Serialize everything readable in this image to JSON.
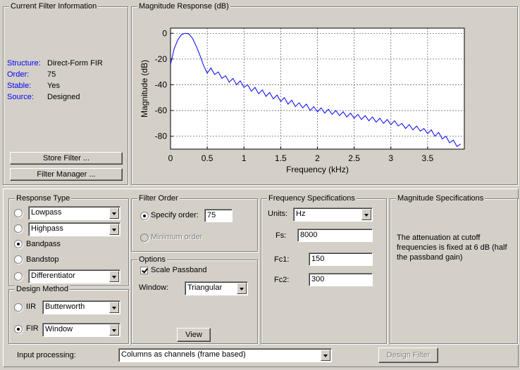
{
  "filter_info": {
    "title": "Current Filter Information",
    "fields": [
      {
        "label": "Structure:",
        "value": "Direct-Form FIR"
      },
      {
        "label": "Order:",
        "value": "75"
      },
      {
        "label": "Stable:",
        "value": "Yes"
      },
      {
        "label": "Source:",
        "value": "Designed"
      }
    ],
    "buttons": [
      "Store Filter ...",
      "Filter Manager ..."
    ]
  },
  "chart_data": {
    "type": "line",
    "title": "Magnitude Response (dB)",
    "xlabel": "Frequency (kHz)",
    "ylabel": "Magnitude (dB)",
    "color": "#0000ff",
    "grid": true,
    "xlim": [
      0,
      4
    ],
    "ylim": [
      -90,
      4
    ],
    "xticks": [
      0,
      0.5,
      1,
      1.5,
      2,
      2.5,
      3,
      3.5
    ],
    "yticks": [
      0,
      -20,
      -40,
      -60,
      -80
    ],
    "x": [
      0,
      0.05,
      0.1,
      0.15,
      0.2,
      0.25,
      0.3,
      0.35,
      0.4,
      0.45,
      0.5,
      0.55,
      0.6,
      0.65,
      0.7,
      0.75,
      0.8,
      0.85,
      0.9,
      0.95,
      1.0,
      1.05,
      1.1,
      1.15,
      1.2,
      1.25,
      1.3,
      1.35,
      1.4,
      1.45,
      1.5,
      1.55,
      1.6,
      1.65,
      1.7,
      1.75,
      1.8,
      1.85,
      1.9,
      1.95,
      2.0,
      2.05,
      2.1,
      2.15,
      2.2,
      2.25,
      2.3,
      2.35,
      2.4,
      2.45,
      2.5,
      2.55,
      2.6,
      2.65,
      2.7,
      2.75,
      2.8,
      2.85,
      2.9,
      2.95,
      3.0,
      3.05,
      3.1,
      3.15,
      3.2,
      3.25,
      3.3,
      3.35,
      3.4,
      3.45,
      3.5,
      3.55,
      3.6,
      3.65,
      3.7,
      3.75,
      3.8,
      3.85,
      3.9,
      3.95
    ],
    "values": [
      -24,
      -12,
      -5,
      -1,
      0,
      -0.5,
      -4,
      -10,
      -17,
      -25,
      -31,
      -27,
      -32,
      -30,
      -35,
      -33,
      -38,
      -35,
      -40,
      -37,
      -42,
      -40,
      -45,
      -42,
      -47,
      -44,
      -49,
      -46,
      -51,
      -48,
      -53,
      -50,
      -55,
      -52,
      -57,
      -54,
      -58,
      -55,
      -60,
      -57,
      -61,
      -58,
      -62,
      -59,
      -63,
      -60,
      -64,
      -61,
      -65,
      -62,
      -66,
      -63,
      -67,
      -64,
      -68,
      -65,
      -69,
      -66,
      -70,
      -67,
      -71,
      -68,
      -72,
      -70,
      -74,
      -71,
      -75,
      -72,
      -76,
      -74,
      -78,
      -75,
      -80,
      -77,
      -82,
      -80,
      -85,
      -83,
      -88,
      -86
    ]
  },
  "response_type": {
    "title": "Response Type",
    "options": [
      "Lowpass",
      "Highpass",
      "Bandpass",
      "Bandstop",
      "Differentiator"
    ]
  },
  "design_method": {
    "title": "Design Method",
    "options": [
      {
        "label": "IIR",
        "value": "Butterworth"
      },
      {
        "label": "FIR",
        "value": "Window"
      }
    ]
  },
  "filter_order": {
    "title": "Filter Order",
    "specify_label": "Specify order:",
    "order": "75",
    "minimum_label": "Minimum order"
  },
  "options": {
    "title": "Options",
    "scale_passband": "Scale Passband",
    "window_label": "Window:",
    "window": "Triangular",
    "view_button": "View"
  },
  "frequency_specs": {
    "title": "Frequency Specifications",
    "units_label": "Units:",
    "units": "Hz",
    "fields": [
      {
        "label": "Fs:",
        "value": "8000"
      },
      {
        "label": "Fc1:",
        "value": "150"
      },
      {
        "label": "Fc2:",
        "value": "300"
      }
    ]
  },
  "magnitude_specs": {
    "title": "Magnitude Specifications",
    "text": "The attenuation at cutoff frequencies is fixed at 6 dB (half the passband gain)"
  },
  "input_processing": {
    "label": "Input processing:",
    "value": "Columns as channels (frame based)"
  },
  "design_button": "Design Filter"
}
